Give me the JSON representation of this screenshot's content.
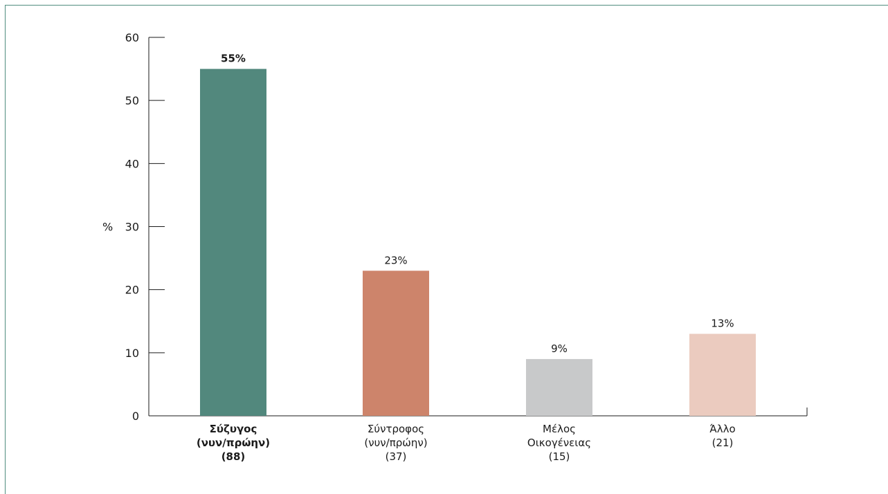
{
  "chart_data": {
    "type": "bar",
    "ylabel": "%",
    "ylim": [
      0,
      60
    ],
    "yticks": [
      0,
      10,
      20,
      30,
      40,
      50,
      60
    ],
    "grid": false,
    "categories": [
      [
        "Σύζυγος",
        "(νυν/πρώην)",
        "(88)"
      ],
      [
        "Σύντροφος",
        "(νυν/πρώην)",
        "(37)"
      ],
      [
        "Μέλος",
        "Οικογένειας",
        "(15)"
      ],
      [
        "Άλλο",
        "(21)"
      ]
    ],
    "values": [
      55,
      23,
      9,
      13
    ],
    "data_labels": [
      "55%",
      "23%",
      "9%",
      "13%"
    ],
    "highlighted": [
      true,
      false,
      false,
      false
    ],
    "colors": [
      "#52887d",
      "#cd846b",
      "#c8c9ca",
      "#ebcbbf"
    ]
  }
}
